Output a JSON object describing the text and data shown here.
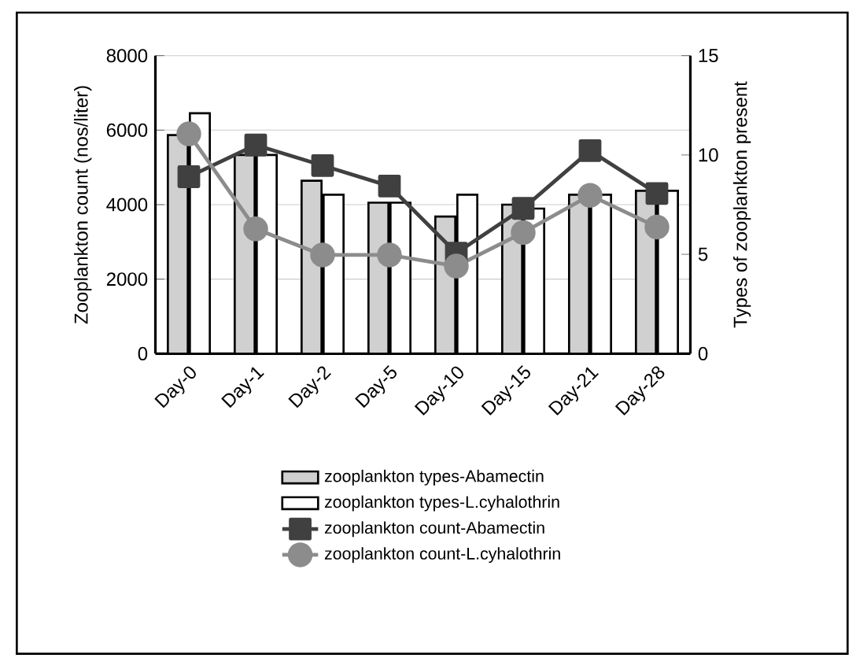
{
  "chart_data": {
    "type": "bar",
    "ylabel": "Zooplankton count (nos/liter)",
    "y2label": "Types of zooplankton present",
    "categories": [
      "Day-0",
      "Day-1",
      "Day-2",
      "Day-5",
      "Day-10",
      "Day-15",
      "Day-21",
      "Day-28"
    ],
    "ylim": [
      0,
      8000
    ],
    "yticks": [
      0,
      2000,
      4000,
      6000,
      {
        "value": 8000,
        "label": "8000"
      }
    ],
    "y2lim": [
      0,
      15
    ],
    "y2ticks": [
      0,
      5,
      10,
      15
    ],
    "grid": "y",
    "legend": "bottom",
    "series": [
      {
        "name": "zooplankton types-Abamectin",
        "axis": "y2",
        "color": "#d0d0d0",
        "values": [
          11.0,
          10.0,
          8.7,
          7.6,
          6.9,
          7.5,
          8.0,
          8.2
        ]
      },
      {
        "name": "zooplankton types-L.cyhalothrin",
        "axis": "y2",
        "color": "#ffffff",
        "values": [
          12.1,
          10.0,
          8.0,
          7.6,
          8.0,
          7.3,
          8.0,
          8.2
        ]
      },
      {
        "name": "zooplankton count-Abamectin",
        "type": "line",
        "marker": "square",
        "color": "#404040",
        "values": [
          4750,
          5600,
          5050,
          4500,
          2700,
          3900,
          5450,
          4300
        ]
      },
      {
        "name": "zooplankton count-L.cyhalothrin",
        "type": "line",
        "marker": "circle",
        "color": "#8c8c8c",
        "values": [
          5900,
          3350,
          2650,
          2650,
          2350,
          3250,
          4250,
          3400
        ]
      }
    ]
  }
}
